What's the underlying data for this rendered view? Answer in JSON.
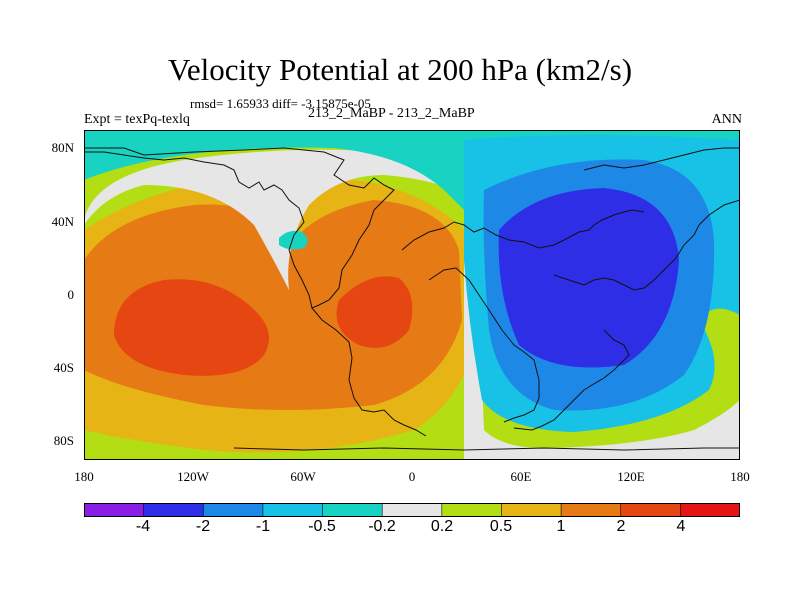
{
  "title": "Velocity Potential at 200 hPa (km2/s)",
  "stats": "rmsd= 1.65933 diff= -3.15875e-05",
  "experiment": "Expt = texPq-texlq",
  "cases": "213_2_MaBP - 213_2_MaBP",
  "season": "ANN",
  "lat_ticks": [
    "80N",
    "40N",
    "0",
    "40S",
    "80S"
  ],
  "lon_ticks": [
    "180",
    "120W",
    "60W",
    "0",
    "60E",
    "120E",
    "180"
  ],
  "colorbar": {
    "labels": [
      "-4",
      "-2",
      "-1",
      "-0.5",
      "-0.2",
      "0.2",
      "0.5",
      "1",
      "2",
      "4"
    ],
    "colors": [
      "#8a1ee6",
      "#2e2ee6",
      "#1e88e6",
      "#18c2e6",
      "#18d2c2",
      "#e6e6e6",
      "#b4de14",
      "#e6b414",
      "#e67a14",
      "#e64612",
      "#e61414"
    ]
  }
}
